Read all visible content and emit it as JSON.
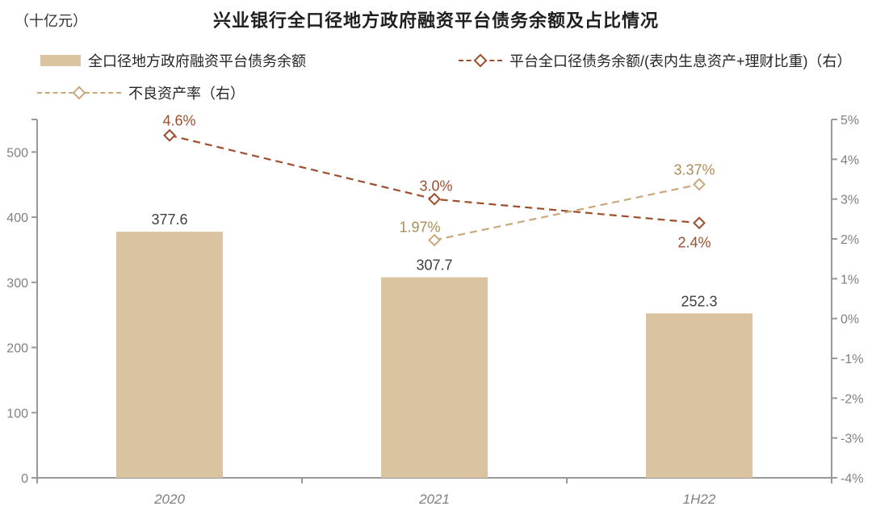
{
  "title": "兴业银行全口径地方政府融资平台债务余额及占比情况",
  "unit_label": "（十亿元）",
  "legend": {
    "items": [
      {
        "label": "全口径地方政府融资平台债务余额",
        "marker": "bar-swatch",
        "color": "#D9C3A0"
      },
      {
        "label": "平台全口径债务余额/(表内生息资产+理财比重)（右）",
        "marker": "dashed-diamond",
        "color": "#9C4E2D"
      },
      {
        "label": "不良资产率（右）",
        "marker": "dashed-diamond",
        "color": "#C9A87B"
      }
    ]
  },
  "chart_data": {
    "type": "bar+line",
    "categories": [
      "2020",
      "2021",
      "1H22"
    ],
    "series": [
      {
        "name": "全口径地方政府融资平台债务余额",
        "type": "bar",
        "axis": "left",
        "values": [
          377.6,
          307.7,
          252.3
        ],
        "labels": [
          "377.6",
          "307.7",
          "252.3"
        ],
        "color": "#D9C3A0",
        "label_color": "#404040"
      },
      {
        "name": "平台全口径债务余额/(表内生息资产+理财比重)（右）",
        "type": "line",
        "axis": "right",
        "values": [
          4.6,
          3.0,
          2.4
        ],
        "labels": [
          "4.6%",
          "3.0%",
          "2.4%"
        ],
        "color": "#9C4E2D",
        "label_color": "#9C4E2D"
      },
      {
        "name": "不良资产率（右）",
        "type": "line",
        "axis": "right",
        "values": [
          null,
          1.97,
          3.37
        ],
        "labels": [
          null,
          "1.97%",
          "3.37%"
        ],
        "color": "#C9A87B",
        "label_color": "#AD8B58"
      }
    ],
    "left_axis": {
      "min": 0,
      "max": 550,
      "ticks": [
        0,
        100,
        200,
        300,
        400,
        500
      ],
      "tick_labels": [
        "0",
        "100",
        "200",
        "300",
        "400",
        "500"
      ]
    },
    "right_axis": {
      "min": -4,
      "max": 5,
      "ticks": [
        5,
        4,
        3,
        2,
        1,
        0,
        -1,
        -2,
        -3,
        -4
      ],
      "tick_labels": [
        "5%",
        "4%",
        "3%",
        "2%",
        "1%",
        "0%",
        "-1%",
        "-2%",
        "-3%",
        "-4%"
      ]
    },
    "grid": false,
    "legend_position": "top"
  }
}
